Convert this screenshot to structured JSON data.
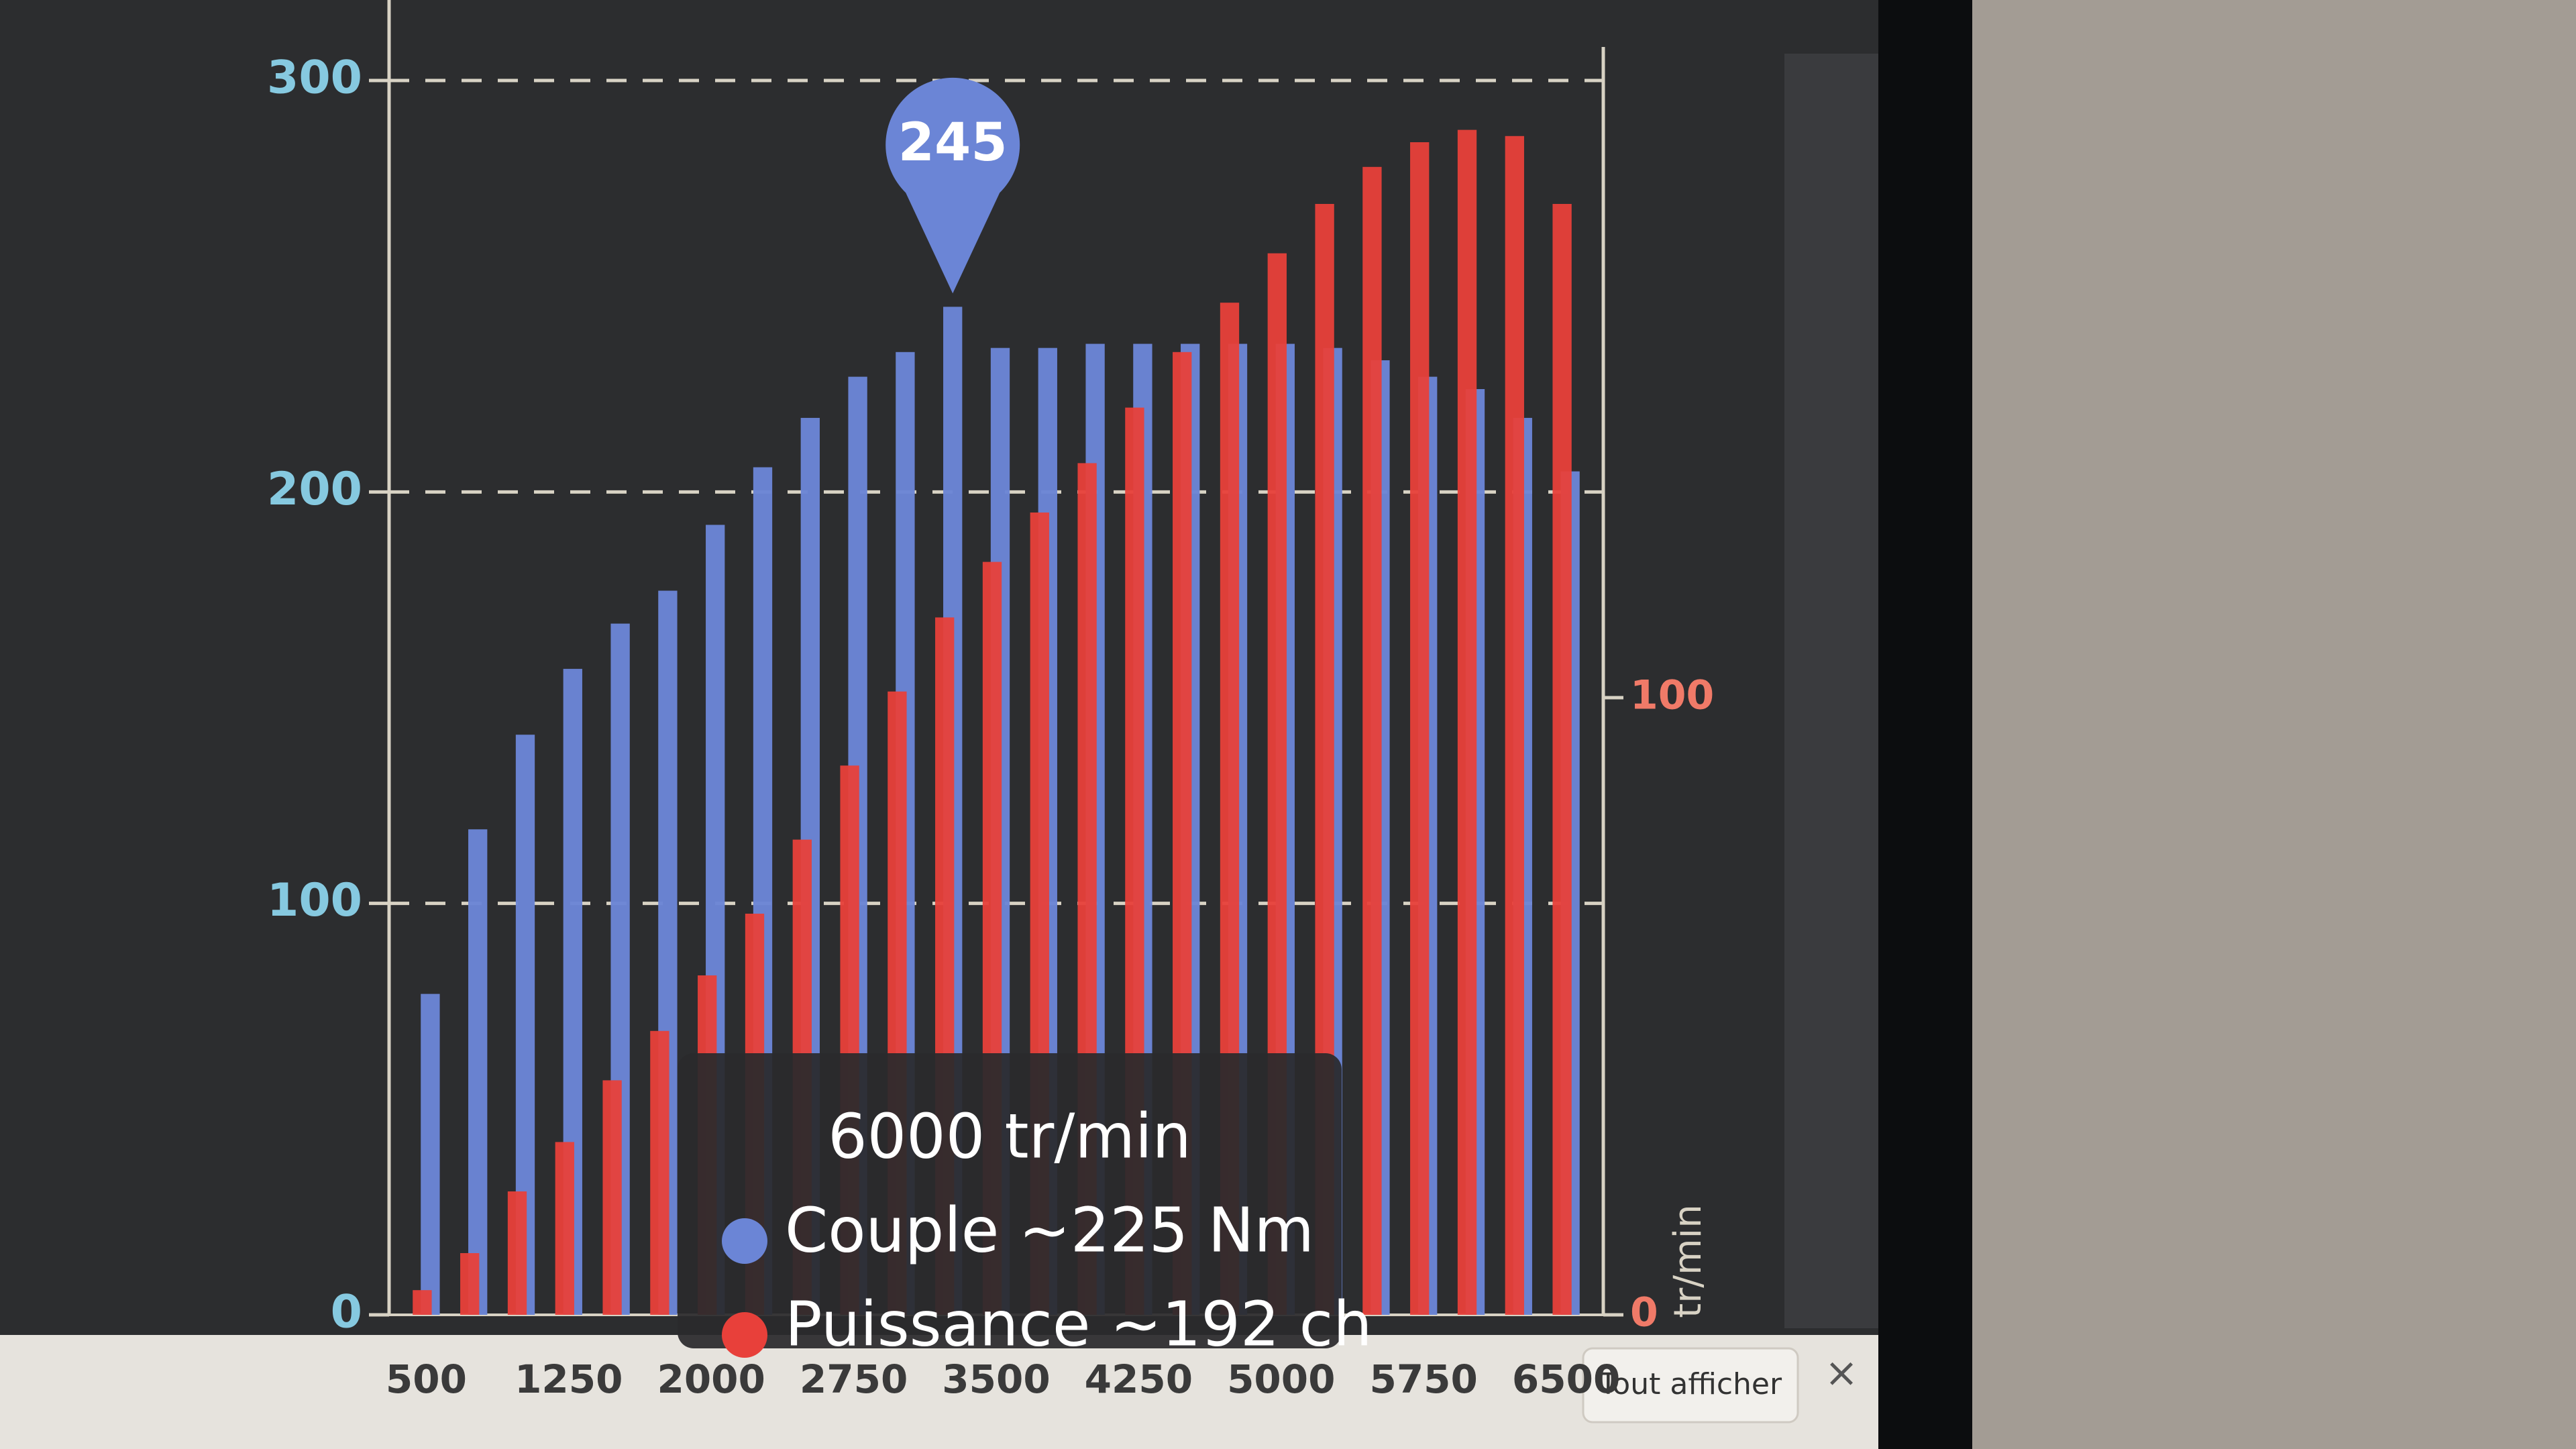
{
  "chart_data": {
    "type": "bar",
    "categories": [
      "500",
      null,
      null,
      "1250",
      null,
      null,
      "2000",
      null,
      null,
      "2750",
      null,
      null,
      "3500",
      null,
      null,
      "4250",
      null,
      null,
      "5000",
      null,
      null,
      "5750",
      null,
      null,
      "6500"
    ],
    "series": [
      {
        "color": "#6b85d6",
        "values": [
          78,
          118,
          141,
          157,
          168,
          176,
          192,
          206,
          218,
          228,
          234,
          245,
          235,
          235,
          236,
          236,
          236,
          236,
          236,
          235,
          232,
          228,
          225,
          218,
          205
        ]
      },
      {
        "color": "#e8403a",
        "axis": "y2",
        "values": [
          4,
          10,
          20,
          28,
          38,
          46,
          55,
          65,
          77,
          89,
          101,
          113,
          122,
          130,
          138,
          147,
          156,
          164,
          172,
          180,
          186,
          190,
          192,
          191,
          180
        ]
      }
    ],
    "ylim": [
      0,
      300
    ],
    "yticks": [
      0,
      100,
      200,
      300
    ],
    "y2lim": [
      0,
      200
    ],
    "y2ticks": [
      0,
      100
    ],
    "y2label": "tr/min",
    "grid": true,
    "highlight": 11,
    "tooltip": {
      "title": "6000 tr/min",
      "lines": [
        "Couple ~225 Nm",
        "Puissance ~192 ch"
      ]
    },
    "buttons": [
      "Tout afficher",
      "×"
    ]
  }
}
